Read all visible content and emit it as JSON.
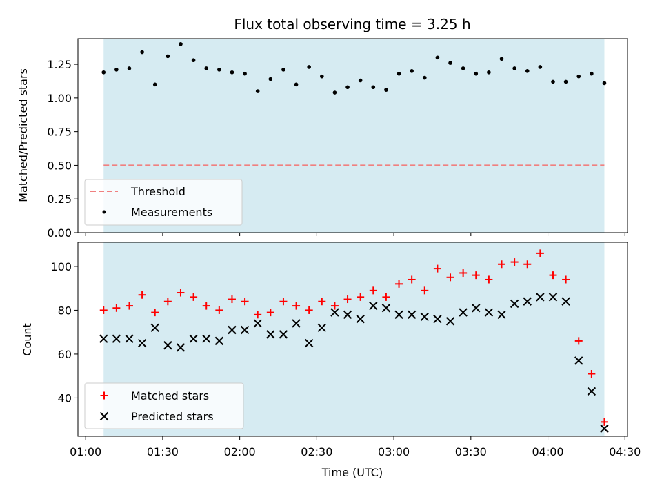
{
  "chart_data": {
    "type": "scatter",
    "title": "Flux total observing time = 3.25 h",
    "xlabel": "Time (UTC)",
    "x_ticks": [
      "01:00",
      "01:30",
      "02:00",
      "02:30",
      "03:00",
      "03:30",
      "04:00",
      "04:30"
    ],
    "x_range": [
      "00:57",
      "04:31"
    ],
    "shaded_interval": [
      "01:07",
      "04:22"
    ],
    "colors": {
      "shade": "#add8e6",
      "threshold": "#f08080",
      "matched": "#ff0000",
      "predicted": "#000000",
      "measurement": "#000000"
    },
    "panels": [
      {
        "id": "ratio",
        "ylabel": "Matched/Predicted stars",
        "ylim": [
          0,
          1.44
        ],
        "y_ticks": [
          "0.00",
          "0.25",
          "0.50",
          "0.75",
          "1.00",
          "1.25"
        ],
        "threshold": 0.5,
        "legend_position": "lower-left",
        "series": [
          {
            "name": "Threshold",
            "kind": "line",
            "marker": "dashed-line"
          },
          {
            "name": "Measurements",
            "kind": "scatter",
            "marker": "dot",
            "points": [
              [
                "01:07",
                1.19
              ],
              [
                "01:12",
                1.21
              ],
              [
                "01:17",
                1.22
              ],
              [
                "01:22",
                1.34
              ],
              [
                "01:27",
                1.1
              ],
              [
                "01:32",
                1.31
              ],
              [
                "01:37",
                1.4
              ],
              [
                "01:42",
                1.28
              ],
              [
                "01:47",
                1.22
              ],
              [
                "01:52",
                1.21
              ],
              [
                "01:57",
                1.19
              ],
              [
                "02:02",
                1.18
              ],
              [
                "02:07",
                1.05
              ],
              [
                "02:12",
                1.14
              ],
              [
                "02:17",
                1.21
              ],
              [
                "02:22",
                1.1
              ],
              [
                "02:27",
                1.23
              ],
              [
                "02:32",
                1.16
              ],
              [
                "02:37",
                1.04
              ],
              [
                "02:42",
                1.08
              ],
              [
                "02:47",
                1.13
              ],
              [
                "02:52",
                1.08
              ],
              [
                "02:57",
                1.06
              ],
              [
                "03:02",
                1.18
              ],
              [
                "03:07",
                1.2
              ],
              [
                "03:12",
                1.15
              ],
              [
                "03:17",
                1.3
              ],
              [
                "03:22",
                1.26
              ],
              [
                "03:27",
                1.22
              ],
              [
                "03:32",
                1.18
              ],
              [
                "03:37",
                1.19
              ],
              [
                "03:42",
                1.29
              ],
              [
                "03:47",
                1.22
              ],
              [
                "03:52",
                1.2
              ],
              [
                "03:57",
                1.23
              ],
              [
                "04:02",
                1.12
              ],
              [
                "04:07",
                1.12
              ],
              [
                "04:12",
                1.16
              ],
              [
                "04:17",
                1.18
              ],
              [
                "04:22",
                1.11
              ]
            ]
          }
        ]
      },
      {
        "id": "count",
        "ylabel": "Count",
        "ylim": [
          22.5,
          111
        ],
        "y_ticks": [
          "40",
          "60",
          "80",
          "100"
        ],
        "legend_position": "lower-left",
        "series": [
          {
            "name": "Matched stars",
            "kind": "scatter",
            "marker": "plus",
            "points": [
              [
                "01:07",
                80
              ],
              [
                "01:12",
                81
              ],
              [
                "01:17",
                82
              ],
              [
                "01:22",
                87
              ],
              [
                "01:27",
                79
              ],
              [
                "01:32",
                84
              ],
              [
                "01:37",
                88
              ],
              [
                "01:42",
                86
              ],
              [
                "01:47",
                82
              ],
              [
                "01:52",
                80
              ],
              [
                "01:57",
                85
              ],
              [
                "02:02",
                84
              ],
              [
                "02:07",
                78
              ],
              [
                "02:12",
                79
              ],
              [
                "02:17",
                84
              ],
              [
                "02:22",
                82
              ],
              [
                "02:27",
                80
              ],
              [
                "02:32",
                84
              ],
              [
                "02:37",
                82
              ],
              [
                "02:42",
                85
              ],
              [
                "02:47",
                86
              ],
              [
                "02:52",
                89
              ],
              [
                "02:57",
                86
              ],
              [
                "03:02",
                92
              ],
              [
                "03:07",
                94
              ],
              [
                "03:12",
                89
              ],
              [
                "03:17",
                99
              ],
              [
                "03:22",
                95
              ],
              [
                "03:27",
                97
              ],
              [
                "03:32",
                96
              ],
              [
                "03:37",
                94
              ],
              [
                "03:42",
                101
              ],
              [
                "03:47",
                102
              ],
              [
                "03:52",
                101
              ],
              [
                "03:57",
                106
              ],
              [
                "04:02",
                96
              ],
              [
                "04:07",
                94
              ],
              [
                "04:12",
                66
              ],
              [
                "04:17",
                51
              ],
              [
                "04:22",
                29
              ]
            ]
          },
          {
            "name": "Predicted stars",
            "kind": "scatter",
            "marker": "x",
            "points": [
              [
                "01:07",
                67
              ],
              [
                "01:12",
                67
              ],
              [
                "01:17",
                67
              ],
              [
                "01:22",
                65
              ],
              [
                "01:27",
                72
              ],
              [
                "01:32",
                64
              ],
              [
                "01:37",
                63
              ],
              [
                "01:42",
                67
              ],
              [
                "01:47",
                67
              ],
              [
                "01:52",
                66
              ],
              [
                "01:57",
                71
              ],
              [
                "02:02",
                71
              ],
              [
                "02:07",
                74
              ],
              [
                "02:12",
                69
              ],
              [
                "02:17",
                69
              ],
              [
                "02:22",
                74
              ],
              [
                "02:27",
                65
              ],
              [
                "02:32",
                72
              ],
              [
                "02:37",
                79
              ],
              [
                "02:42",
                78
              ],
              [
                "02:47",
                76
              ],
              [
                "02:52",
                82
              ],
              [
                "02:57",
                81
              ],
              [
                "03:02",
                78
              ],
              [
                "03:07",
                78
              ],
              [
                "03:12",
                77
              ],
              [
                "03:17",
                76
              ],
              [
                "03:22",
                75
              ],
              [
                "03:27",
                79
              ],
              [
                "03:32",
                81
              ],
              [
                "03:37",
                79
              ],
              [
                "03:42",
                78
              ],
              [
                "03:47",
                83
              ],
              [
                "03:52",
                84
              ],
              [
                "03:57",
                86
              ],
              [
                "04:02",
                86
              ],
              [
                "04:07",
                84
              ],
              [
                "04:12",
                57
              ],
              [
                "04:17",
                43
              ],
              [
                "04:22",
                26
              ]
            ]
          }
        ]
      }
    ]
  }
}
